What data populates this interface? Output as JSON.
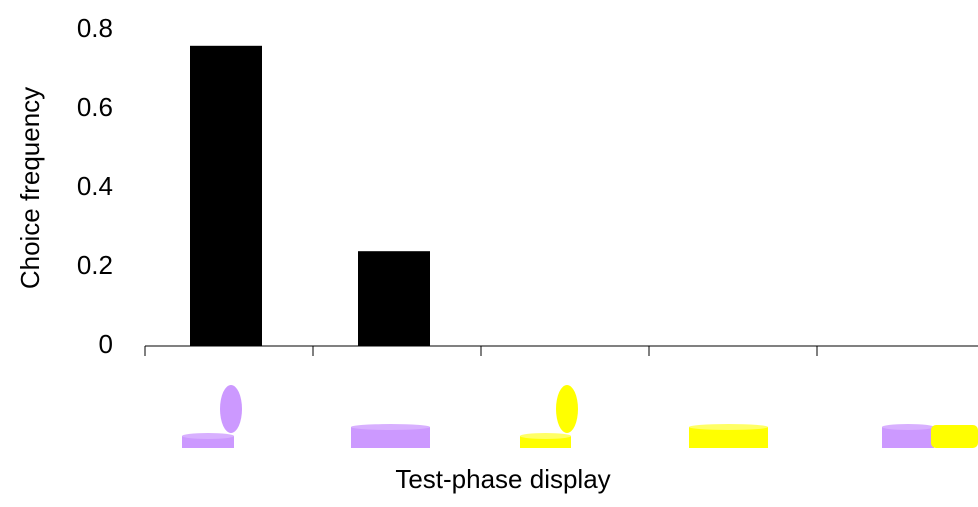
{
  "chart_data": {
    "type": "bar",
    "y_label": "Choice frequency",
    "x_label": "Test-phase display",
    "categories": [
      null,
      null,
      null,
      null,
      null
    ],
    "values": [
      0.76,
      0.24,
      0,
      0,
      0
    ],
    "color": "#000000",
    "ylim": [
      0,
      0.8
    ],
    "yticks": [
      0,
      0.2,
      0.4,
      0.6,
      0.8
    ],
    "grid": false
  }
}
